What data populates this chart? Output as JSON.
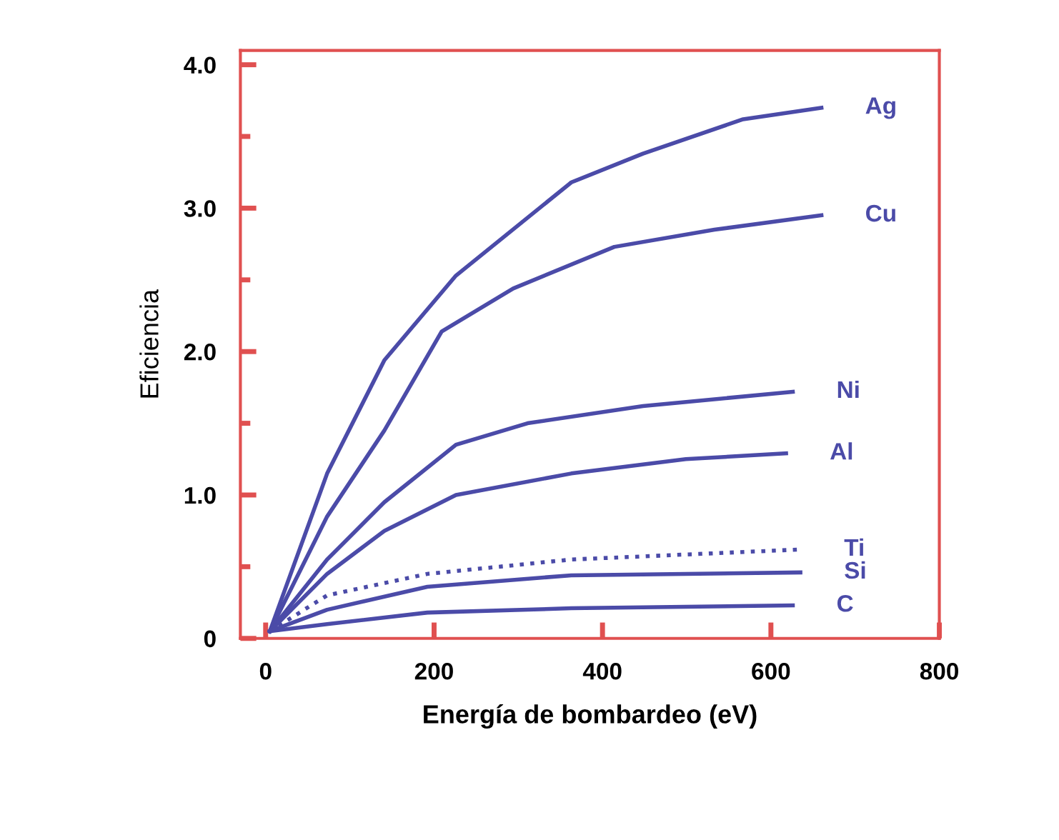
{
  "chart_data": {
    "type": "line",
    "xlabel": "Energía de bombardeo (eV)",
    "ylabel": "Eficiencia",
    "xlim": [
      -30,
      800
    ],
    "ylim": [
      0,
      4.1
    ],
    "xticks": [
      0,
      200,
      400,
      600,
      800
    ],
    "yticks": [
      {
        "value": 0,
        "label": "0"
      },
      {
        "value": 0.5,
        "label": null
      },
      {
        "value": 1,
        "label": "1.0"
      },
      {
        "value": 1.5,
        "label": null
      },
      {
        "value": 2,
        "label": "2.0"
      },
      {
        "value": 2.5,
        "label": null
      },
      {
        "value": 3,
        "label": "3.0"
      },
      {
        "value": 3.5,
        "label": null
      },
      {
        "value": 4,
        "label": "4.0"
      }
    ],
    "grid": false,
    "legend": false,
    "marker": "none",
    "series": [
      {
        "name": "Ag",
        "color": "#4b4ba8",
        "x": [
          5,
          73,
          141,
          226,
          363,
          448,
          567,
          660
        ],
        "values": [
          0.05,
          1.15,
          1.94,
          2.53,
          3.18,
          3.38,
          3.62,
          3.7
        ]
      },
      {
        "name": "Cu",
        "color": "#4b4ba8",
        "x": [
          5,
          73,
          141,
          209,
          294,
          414,
          533,
          660
        ],
        "values": [
          0.05,
          0.85,
          1.45,
          2.14,
          2.44,
          2.73,
          2.85,
          2.95
        ]
      },
      {
        "name": "Ni",
        "color": "#4b4ba8",
        "x": [
          5,
          73,
          141,
          226,
          311,
          448,
          626
        ],
        "values": [
          0.05,
          0.55,
          0.95,
          1.35,
          1.5,
          1.62,
          1.72
        ]
      },
      {
        "name": "Al",
        "color": "#4b4ba8",
        "x": [
          5,
          73,
          141,
          226,
          363,
          499,
          618
        ],
        "values": [
          0.05,
          0.45,
          0.75,
          1.0,
          1.15,
          1.25,
          1.29
        ]
      },
      {
        "name": "Ti",
        "color": "#4b4ba8",
        "line_style": "dotted",
        "x": [
          5,
          73,
          192,
          363,
          635
        ],
        "values": [
          0.05,
          0.3,
          0.45,
          0.55,
          0.62
        ]
      },
      {
        "name": "Si",
        "color": "#4b4ba8",
        "x": [
          5,
          73,
          192,
          363,
          635
        ],
        "values": [
          0.05,
          0.2,
          0.36,
          0.44,
          0.46
        ]
      },
      {
        "name": "C",
        "color": "#4b4ba8",
        "x": [
          5,
          73,
          192,
          363,
          626
        ],
        "values": [
          0.05,
          0.1,
          0.18,
          0.21,
          0.23
        ]
      }
    ]
  }
}
